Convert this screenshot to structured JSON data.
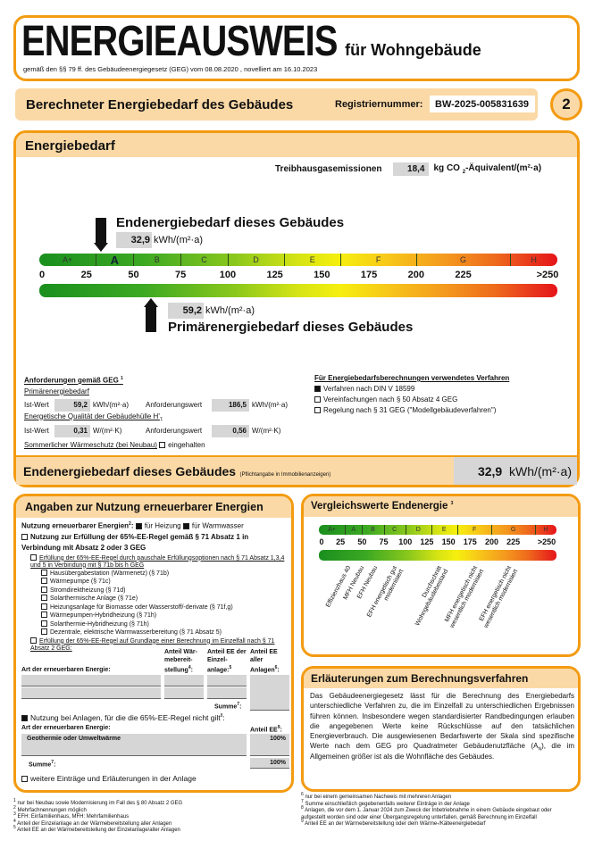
{
  "header": {
    "title": "ENERGIEAUSWEIS",
    "title_suffix": "für Wohngebäude",
    "subtitle": "gemäß den §§ 79 ff. des Gebäudeenergiegesetz (GEG) vom 08.08.2020 , novelliert am 16.10.2023"
  },
  "section_bar": {
    "title": "Berechneter Energiebedarf des Gebäudes",
    "reg_label": "Registriernummer:",
    "reg_value": "BW-2025-005831639",
    "page_number": "2"
  },
  "energiebedarf": {
    "title": "Energiebedarf",
    "ghg_label": "Treibhausgasemissionen",
    "ghg_value": "18,4",
    "ghg_unit": "kg CO",
    "ghg_sub": "2",
    "ghg_unit2": "-Äquivalent/(m²·a)",
    "end_label": "Endenergiebedarf dieses Gebäudes",
    "end_value": "32,9",
    "end_unit": "kWh/(m²·a)",
    "end_numeric": 32.9,
    "primary_label": "Primärenergiebedarf dieses Gebäudes",
    "primary_value": "59,2",
    "primary_unit": "kWh/(m²·a)",
    "primary_numeric": 59.2,
    "classes": [
      "A+",
      "A",
      "B",
      "C",
      "D",
      "E",
      "F",
      "G",
      "H"
    ],
    "class_bounds": [
      0,
      30,
      50,
      75,
      100,
      130,
      160,
      200,
      250,
      275
    ],
    "active_class": "A",
    "ticks": [
      "0",
      "25",
      "50",
      "75",
      "100",
      "125",
      "150",
      "175",
      "200",
      "225",
      ">250"
    ],
    "req": {
      "title": "Anforderungen gemäß GEG",
      "title_sup": "1",
      "primary_title": "Primärenergiebedarf",
      "ist_label": "Ist-Wert",
      "ist_value": "59,2",
      "unit1": "kWh/(m²·a)",
      "anf_label": "Anforderungswert",
      "anf_value": "186,5",
      "unit2": "kWh/(m²·a)",
      "hull_title": "Energetische Qualität der Gebäudehülle H'",
      "hull_sub": "T",
      "ist2_value": "0,31",
      "wunit": "W/(m²·K)",
      "anf2_value": "0,56",
      "summer_label": "Sommerlicher Wärmeschutz (bei Neubau)",
      "summer_check": "eingehalten",
      "summer_checked": false
    },
    "method": {
      "title": "Für Energiebedarfsberechnungen verwendetes Verfahren",
      "options": [
        {
          "label": "Verfahren nach DIN V 18599",
          "checked": true
        },
        {
          "label": "Vereinfachungen nach § 50 Absatz 4 GEG",
          "checked": false
        },
        {
          "label": "Regelung nach § 31 GEG (\"Modellgebäudeverfahren\")",
          "checked": false
        }
      ]
    },
    "bottom_label": "Endenergiebedarf dieses Gebäudes",
    "bottom_note": "(Pflichtangabe in Immobilienanzeigen)",
    "bottom_value": "32,9",
    "bottom_unit": "kWh/(m²·a)"
  },
  "renewable": {
    "title": "Angaben zur Nutzung erneuerbarer Energien",
    "usage_label": "Nutzung erneuerbarer Energien",
    "usage_sup": "2",
    "heating": "für Heizung",
    "hot_water": "für Warmwasser",
    "heating_checked": true,
    "hot_water_checked": true,
    "rule_label": "Nutzung zur Erfüllung der 65%-EE-Regel gemäß § 71 Absatz 1 in Verbindung mit Absatz 2 oder 3 GEG",
    "pauschal_label": "Erfüllung der 65%-EE-Regel durch pauschale Erfüllungsoptionen nach § 71 Absatz 1,3,4 und 5 in Verbindung mit § 71b bis h GEG",
    "options": [
      "Hausübergabestation (Wärmenetz) (§ 71b)",
      "Wärmepumpe (§ 71c)",
      "Stromdirektheizung (§ 71d)",
      "Solarthermische Anlage (§ 71e)",
      "Heizungsanlage für Biomasse oder Wasserstoff/-derivate (§ 71f,g)",
      "Wärmepumpen-Hybridheizung (§ 71h)",
      "Solarthermie-Hybridheizung (§ 71h)",
      "Dezentrale, elektrische Warmwasserbereitung (§ 71 Absatz 5)"
    ],
    "einzel_label": "Erfüllung der 65%-EE-Regel auf Grundlage einer Berechnung im Einzelfall nach § 71 Absatz 2 GEG:",
    "col_art": "Art der erneuerbaren Energie:",
    "col_w": "Anteil Wär-mebereit-stellung",
    "col_w_sup": "4",
    "col_e": "Anteil EE der Einzel-anlage:",
    "col_e_sup": "5",
    "col_a": "Anteil EE aller Anlagen",
    "col_a_sup": "6",
    "summe": "Summe",
    "summe_sup": "7",
    "not_rule_label": "Nutzung bei Anlagen, für die die 65%-EE-Regel nicht gilt",
    "not_rule_sup": "8",
    "not_rule_checked": true,
    "col_art2": "Art der erneuerbaren Energie:",
    "col_ee": "Anteil EE",
    "col_ee_sup": "9",
    "row_energy": "Geothermie oder Umweltwärme",
    "row_value": "100%",
    "summe_value": "100%",
    "more_label": "weitere Einträge und Erläuterungen in der Anlage"
  },
  "compare": {
    "title": "Vergleichswerte Endenergie",
    "title_sup": "3",
    "labels": [
      "Effizienzhaus 40",
      "MFH Neubau",
      "EFH Neubau",
      "EFH energetisch gut\nmodernisiert",
      "Durchschnitt\nWohngebäudebestand",
      "MFH energetisch nicht\nwesentlich modernisiert",
      "EFH energetisch nicht\nwesentlich modernisiert"
    ]
  },
  "explain": {
    "title": "Erläuterungen zum Berechnungsverfahren",
    "text_before": "Das Gebäudeenergiegesetz lässt für die Berechnung des Energiebedarfs unterschiedliche Verfahren zu, die im Einzelfall zu unterschiedlichen Ergebnissen führen können. Insbesondere wegen standardisierter Randbedingungen erlauben die angegebenen Werte keine Rückschlüsse auf den tatsächlichen Energieverbrauch. Die ausgewiesenen Bedarfswerte der Skala sind spezifische Werte nach dem GEG pro Quadratmeter Gebäudenutzfläche (A",
    "text_sub": "N",
    "text_after": "), die im Allgemeinen größer ist als die Wohnfläche des Gebäudes."
  },
  "footnotes_left": [
    "nur bei Neubau sowie Modernisierung im Fall des § 80 Absatz 2 GEG",
    "Mehrfachnennungen möglich",
    "EFH: Einfamilienhaus, MFH: Mehrfamilienhaus",
    "Anteil der Einzelanlage an der Wärmebereitstellung aller Anlagen",
    "Anteil EE an der Wärmebereitstellung der Einzelanlage/aller Anlagen"
  ],
  "footnotes_right": [
    "nur bei einem gemeinsamen Nachweis mit mehreren Anlagen",
    "Summe einschließlich gegebenenfalls weiterer Einträge in der Anlage",
    "Anlagen, die vor dem 1. Januar 2024 zum Zweck der Inbetriebnahme in einem Gebäude eingebaut oder aufgestellt worden sind oder einer Übergangsregelung unterfallen, gemäß Berechnung im Einzelfall",
    "Anteil EE an der Wärmebereitstellung oder dem Wärme-/Kälteenergiebedarf"
  ],
  "colors": {
    "accent": "#f39b11",
    "band": "#fbd9a6",
    "field": "#d6d6d6"
  }
}
